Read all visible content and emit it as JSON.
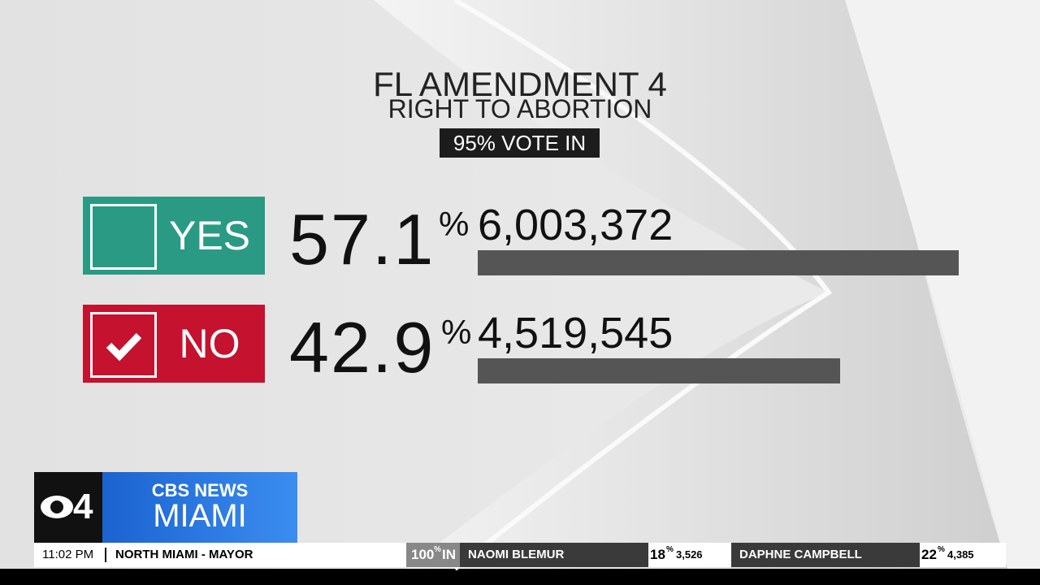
{
  "header": {
    "title": "FL AMENDMENT 4",
    "subtitle": "RIGHT TO ABORTION",
    "reporting": "95% VOTE IN"
  },
  "options": [
    {
      "label": "YES",
      "percent": 57.1,
      "unit": "%",
      "votes": 6003372,
      "votes_label": "6,003,372",
      "color": "#2a9a84"
    },
    {
      "label": "NO",
      "percent": 42.9,
      "unit": "%",
      "votes": 4519545,
      "votes_label": "4,519,545",
      "color": "#c4122f"
    }
  ],
  "logo": {
    "channel": "4",
    "network": "CBS NEWS",
    "city": "MIAMI"
  },
  "ticker": {
    "time": "11:02 PM",
    "race": "NORTH MIAMI - MAYOR",
    "reporting": "100",
    "reporting_unit": "%",
    "reporting_suffix": "IN",
    "candidates": [
      {
        "name": "NAOMI BLEMUR",
        "percent": 18,
        "unit": "%",
        "votes": "3,526"
      },
      {
        "name": "DAPHNE CAMPBELL",
        "percent": 22,
        "unit": "%",
        "votes": "4,385"
      }
    ]
  }
}
